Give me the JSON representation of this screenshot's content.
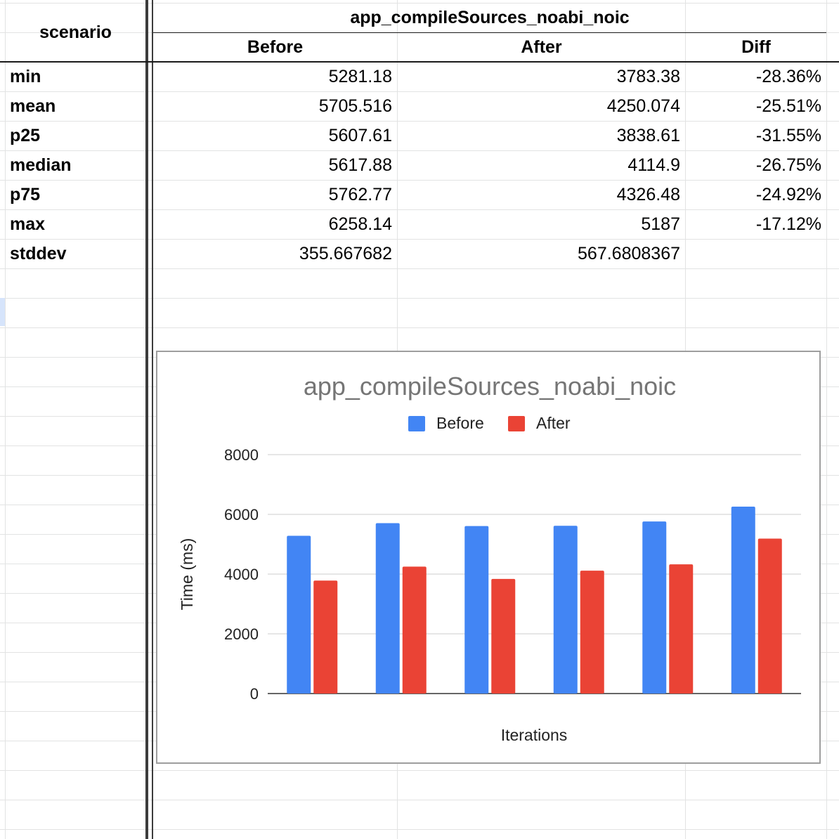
{
  "sheet": {
    "header": {
      "scenario_label": "scenario",
      "group_title": "app_compileSources_noabi_noic",
      "columns": [
        "Before",
        "After",
        "Diff"
      ]
    },
    "rows": [
      {
        "label": "min",
        "before": "5281.18",
        "after": "3783.38",
        "diff": "-28.36%"
      },
      {
        "label": "mean",
        "before": "5705.516",
        "after": "4250.074",
        "diff": "-25.51%"
      },
      {
        "label": "p25",
        "before": "5607.61",
        "after": "3838.61",
        "diff": "-31.55%"
      },
      {
        "label": "median",
        "before": "5617.88",
        "after": "4114.9",
        "diff": "-26.75%"
      },
      {
        "label": "p75",
        "before": "5762.77",
        "after": "4326.48",
        "diff": "-24.92%"
      },
      {
        "label": "max",
        "before": "6258.14",
        "after": "5187",
        "diff": "-17.12%"
      },
      {
        "label": "stddev",
        "before": "355.667682",
        "after": "567.6808367",
        "diff": ""
      }
    ]
  },
  "chart_data": {
    "type": "bar",
    "title": "app_compileSources_noabi_noic",
    "xlabel": "Iterations",
    "ylabel": "Time (ms)",
    "ylim": [
      0,
      8000
    ],
    "yticks": [
      0,
      2000,
      4000,
      6000,
      8000
    ],
    "grid": true,
    "legend_position": "top",
    "categories": [
      "",
      "",
      "",
      "",
      "",
      ""
    ],
    "series": [
      {
        "name": "Before",
        "color": "#4285f4",
        "values": [
          5281.18,
          5705.516,
          5607.61,
          5617.88,
          5762.77,
          6258.14
        ]
      },
      {
        "name": "After",
        "color": "#ea4335",
        "values": [
          3783.38,
          4250.074,
          3838.61,
          4114.9,
          4326.48,
          5187
        ]
      }
    ]
  }
}
